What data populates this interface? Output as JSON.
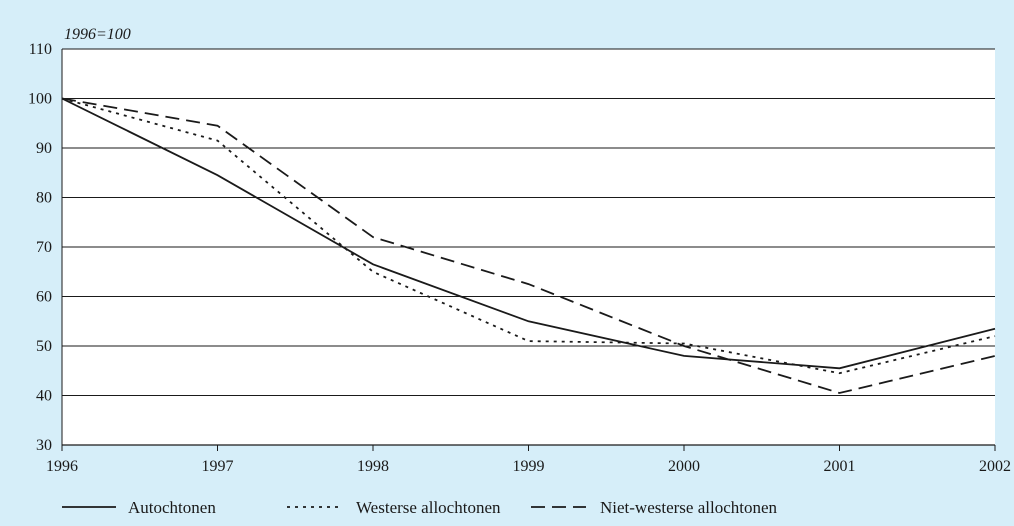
{
  "chart_data": {
    "type": "line",
    "title": "",
    "unit_label": "1996=100",
    "xlabel": "",
    "ylabel": "",
    "x": [
      "1996",
      "1997",
      "1998",
      "1999",
      "2000",
      "2001",
      "2002"
    ],
    "ylim": [
      30,
      110
    ],
    "yticks": [
      30,
      40,
      50,
      60,
      70,
      80,
      90,
      100,
      110
    ],
    "grid": true,
    "legend_position": "bottom",
    "background": "#d6eef9",
    "plot_background": "#ffffff",
    "series": [
      {
        "name": "Autochtonen",
        "style": "solid",
        "color": "#1a1a1a",
        "values": [
          100,
          84.5,
          66.5,
          55,
          48,
          45.5,
          53.5
        ]
      },
      {
        "name": "Westerse allochtonen",
        "style": "dotted",
        "color": "#1a1a1a",
        "values": [
          100,
          91.5,
          65,
          51,
          50.5,
          44.5,
          52
        ]
      },
      {
        "name": "Niet-westerse allochtonen",
        "style": "dashed",
        "color": "#1a1a1a",
        "values": [
          100,
          94.5,
          72,
          62.5,
          50,
          40.5,
          48
        ]
      }
    ]
  }
}
